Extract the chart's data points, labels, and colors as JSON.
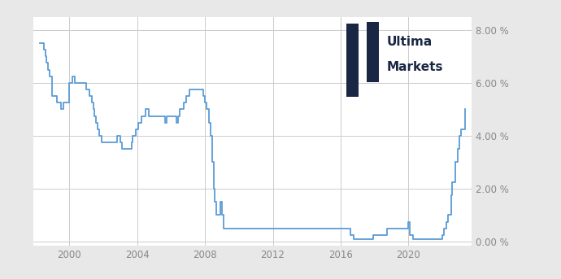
{
  "bg_color": "#e8e8e8",
  "plot_bg_color": "#ffffff",
  "line_color": "#5b9bd5",
  "line_width": 1.3,
  "ylim": [
    -0.15,
    8.5
  ],
  "yticks": [
    0,
    2,
    4,
    6,
    8
  ],
  "ytick_labels": [
    "0.00 %",
    "2.00 %",
    "4.00 %",
    "6.00 %",
    "8.00 %"
  ],
  "logo_color": "#1a2744",
  "logo_text_line1": "Ultima",
  "logo_text_line2": "Markets",
  "xlim": [
    1997.9,
    2023.7
  ],
  "xticks": [
    2000,
    2004,
    2008,
    2012,
    2016,
    2020
  ],
  "xtick_labels": [
    "2000",
    "2004",
    "2008",
    "2012",
    "2016",
    "2020"
  ],
  "grid_color": "#cccccc",
  "tick_color": "#888888",
  "tick_fontsize": 8.5,
  "dates": [
    1998.25,
    1998.5,
    1998.583,
    1998.667,
    1998.75,
    1998.833,
    1999.0,
    1999.25,
    1999.5,
    1999.667,
    2000.0,
    2000.167,
    2000.333,
    2000.5,
    2001.0,
    2001.167,
    2001.333,
    2001.417,
    2001.5,
    2001.583,
    2001.667,
    2001.75,
    2001.917,
    2002.833,
    2003.0,
    2003.083,
    2003.583,
    2003.667,
    2003.75,
    2003.917,
    2004.083,
    2004.25,
    2004.5,
    2004.667,
    2004.917,
    2005.667,
    2005.75,
    2006.333,
    2006.417,
    2006.5,
    2006.75,
    2006.917,
    2007.083,
    2007.5,
    2007.833,
    2007.917,
    2008.0,
    2008.083,
    2008.25,
    2008.333,
    2008.417,
    2008.5,
    2008.583,
    2008.667,
    2008.75,
    2008.917,
    2009.0,
    2009.083,
    2009.25,
    2016.583,
    2016.75,
    2017.917,
    2018.75,
    2020.0,
    2020.083,
    2020.25,
    2021.75,
    2022.0,
    2022.083,
    2022.25,
    2022.333,
    2022.5,
    2022.583,
    2022.667,
    2022.75,
    2022.917,
    2023.0,
    2023.083,
    2023.333
  ],
  "rates": [
    7.5,
    7.25,
    7.0,
    6.75,
    6.5,
    6.25,
    5.5,
    5.25,
    5.0,
    5.25,
    6.0,
    6.25,
    6.0,
    6.0,
    5.75,
    5.5,
    5.25,
    5.0,
    4.75,
    4.5,
    4.25,
    4.0,
    3.75,
    4.0,
    3.75,
    3.5,
    3.5,
    3.75,
    4.0,
    4.25,
    4.5,
    4.75,
    5.0,
    4.75,
    4.75,
    4.5,
    4.75,
    4.5,
    4.75,
    5.0,
    5.25,
    5.5,
    5.75,
    5.75,
    5.75,
    5.5,
    5.25,
    5.0,
    4.5,
    4.0,
    3.0,
    2.0,
    1.5,
    1.0,
    1.0,
    1.5,
    1.0,
    0.5,
    0.5,
    0.25,
    0.1,
    0.25,
    0.5,
    0.75,
    0.25,
    0.1,
    0.1,
    0.25,
    0.5,
    0.75,
    1.0,
    1.75,
    2.25,
    2.25,
    3.0,
    3.5,
    4.0,
    4.25,
    5.0
  ]
}
